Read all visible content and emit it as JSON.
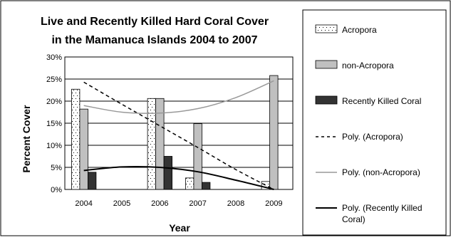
{
  "chart_data": {
    "type": "bar",
    "title_lines": [
      "Live and Recently Killed Hard Coral Cover",
      "in the Mamanuca Islands 2004 to 2007"
    ],
    "xlabel": "Year",
    "ylabel": "Percent Cover",
    "categories": [
      "2004",
      "2005",
      "2006",
      "2007",
      "2008",
      "2009"
    ],
    "y_ticks": [
      "0%",
      "5%",
      "10%",
      "15%",
      "20%",
      "25%",
      "30%"
    ],
    "ylim": [
      0,
      30
    ],
    "grid": true,
    "legend_position": "right",
    "series": [
      {
        "name": "Acropora",
        "values": [
          22.7,
          null,
          20.6,
          2.6,
          null,
          1.8
        ],
        "fill": "#ffffff",
        "pattern": "dots"
      },
      {
        "name": "non-Acropora",
        "values": [
          18.2,
          null,
          20.6,
          14.9,
          null,
          25.8
        ],
        "fill": "#c0c0c0"
      },
      {
        "name": "Recently Killed Coral",
        "values": [
          3.9,
          null,
          7.5,
          1.6,
          null,
          0
        ],
        "fill": "#333333"
      }
    ],
    "trendlines": [
      {
        "name": "Poly. (Acropora)",
        "values": [
          24.3,
          19.3,
          14.4,
          9.5,
          4.5,
          -0.4
        ],
        "color": "#000000",
        "style": "dashed",
        "width": 1.5
      },
      {
        "name": "Poly. (non-Acropora)",
        "values": [
          19.0,
          17.5,
          17.3,
          18.3,
          20.8,
          24.6
        ],
        "color": "#999999",
        "style": "solid",
        "width": 1.5
      },
      {
        "name": "Poly. (Recently Killed Coral)",
        "values": [
          4.3,
          5.1,
          5.0,
          4.0,
          2.1,
          -0.6
        ],
        "color": "#000000",
        "style": "solid",
        "width": 2
      }
    ]
  }
}
